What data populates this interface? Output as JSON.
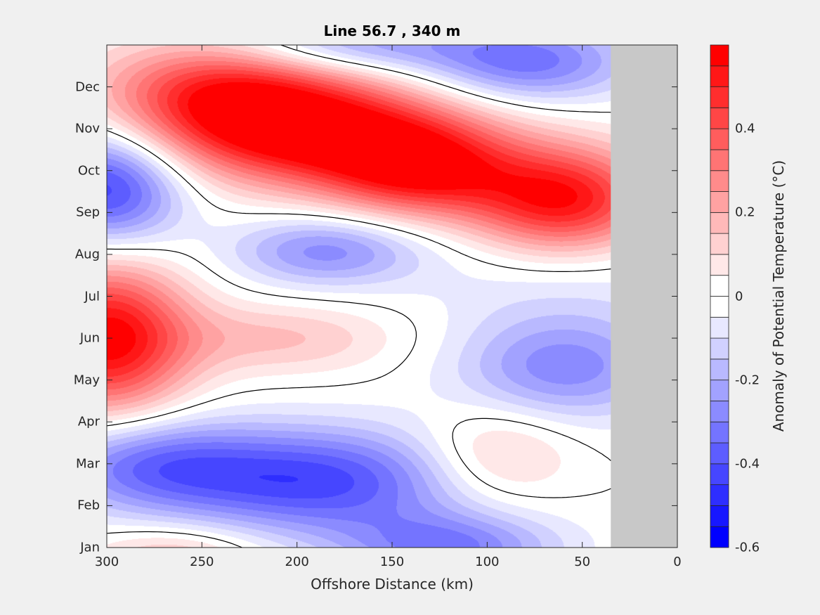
{
  "chart_data": {
    "type": "heatmap",
    "subtype": "filled-contour",
    "title": "Line 56.7 , 340 m",
    "xlabel": "Offshore Distance (km)",
    "ylabel": "",
    "colorbar_label": "Anomaly of Potential Temperature (°C)",
    "xlim": [
      300,
      0
    ],
    "ylim": [
      1,
      13
    ],
    "x_ticks": [
      300,
      250,
      200,
      150,
      100,
      50,
      0
    ],
    "x_tick_labels": [
      "300",
      "250",
      "200",
      "150",
      "100",
      "50",
      "0"
    ],
    "y_ticks": [
      1,
      2,
      3,
      4,
      5,
      6,
      7,
      8,
      9,
      10,
      11,
      12
    ],
    "y_tick_labels": [
      "Jan",
      "Feb",
      "Mar",
      "Apr",
      "May",
      "Jun",
      "Jul",
      "Aug",
      "Sep",
      "Oct",
      "Nov",
      "Dec"
    ],
    "clim": [
      -0.6,
      0.6
    ],
    "contour_step": 0.05,
    "colorbar_ticks": [
      0.4,
      0.2,
      0,
      -0.2,
      -0.4,
      -0.6
    ],
    "colorbar_tick_labels": [
      "0.4",
      "0.2",
      "0",
      "-0.2",
      "-0.4",
      "-0.6"
    ],
    "line_contour_level": 0,
    "no_data_region_km": [
      35,
      0
    ],
    "colors": {
      "positive": "#ff0000",
      "negative": "#0000ff",
      "neutral": "#ffffff",
      "no_data": "#c8c8c8"
    },
    "anomaly_features": [
      {
        "km": 190,
        "month": 10.9,
        "value": 0.58,
        "sx": 55,
        "sy": 0.9
      },
      {
        "km": 240,
        "month": 11.9,
        "value": 0.42,
        "sx": 45,
        "sy": 0.9
      },
      {
        "km": 135,
        "month": 10.0,
        "value": 0.45,
        "sx": 35,
        "sy": 0.8
      },
      {
        "km": 60,
        "month": 9.3,
        "value": 0.55,
        "sx": 35,
        "sy": 0.9
      },
      {
        "km": 300,
        "month": 6.0,
        "value": 0.58,
        "sx": 30,
        "sy": 1.3
      },
      {
        "km": 210,
        "month": 6.0,
        "value": 0.16,
        "sx": 45,
        "sy": 0.6
      },
      {
        "km": 95,
        "month": 3.2,
        "value": 0.18,
        "sx": 28,
        "sy": 0.8
      },
      {
        "km": 265,
        "month": 0.8,
        "value": 0.18,
        "sx": 30,
        "sy": 0.5
      },
      {
        "km": 300,
        "month": 9.6,
        "value": -0.45,
        "sx": 28,
        "sy": 1.0
      },
      {
        "km": 185,
        "month": 8.1,
        "value": -0.27,
        "sx": 35,
        "sy": 0.6
      },
      {
        "km": 60,
        "month": 5.3,
        "value": -0.28,
        "sx": 40,
        "sy": 0.9
      },
      {
        "km": 190,
        "month": 2.6,
        "value": -0.42,
        "sx": 55,
        "sy": 0.9
      },
      {
        "km": 280,
        "month": 3.0,
        "value": -0.3,
        "sx": 40,
        "sy": 0.8
      },
      {
        "km": 120,
        "month": 1.0,
        "value": -0.3,
        "sx": 40,
        "sy": 0.6
      },
      {
        "km": 80,
        "month": 12.6,
        "value": -0.33,
        "sx": 40,
        "sy": 0.7
      },
      {
        "km": 175,
        "month": 13.0,
        "value": -0.25,
        "sx": 45,
        "sy": 0.5
      },
      {
        "km": 60,
        "month": 7.5,
        "value": -0.08,
        "sx": 60,
        "sy": 1.0
      }
    ]
  }
}
